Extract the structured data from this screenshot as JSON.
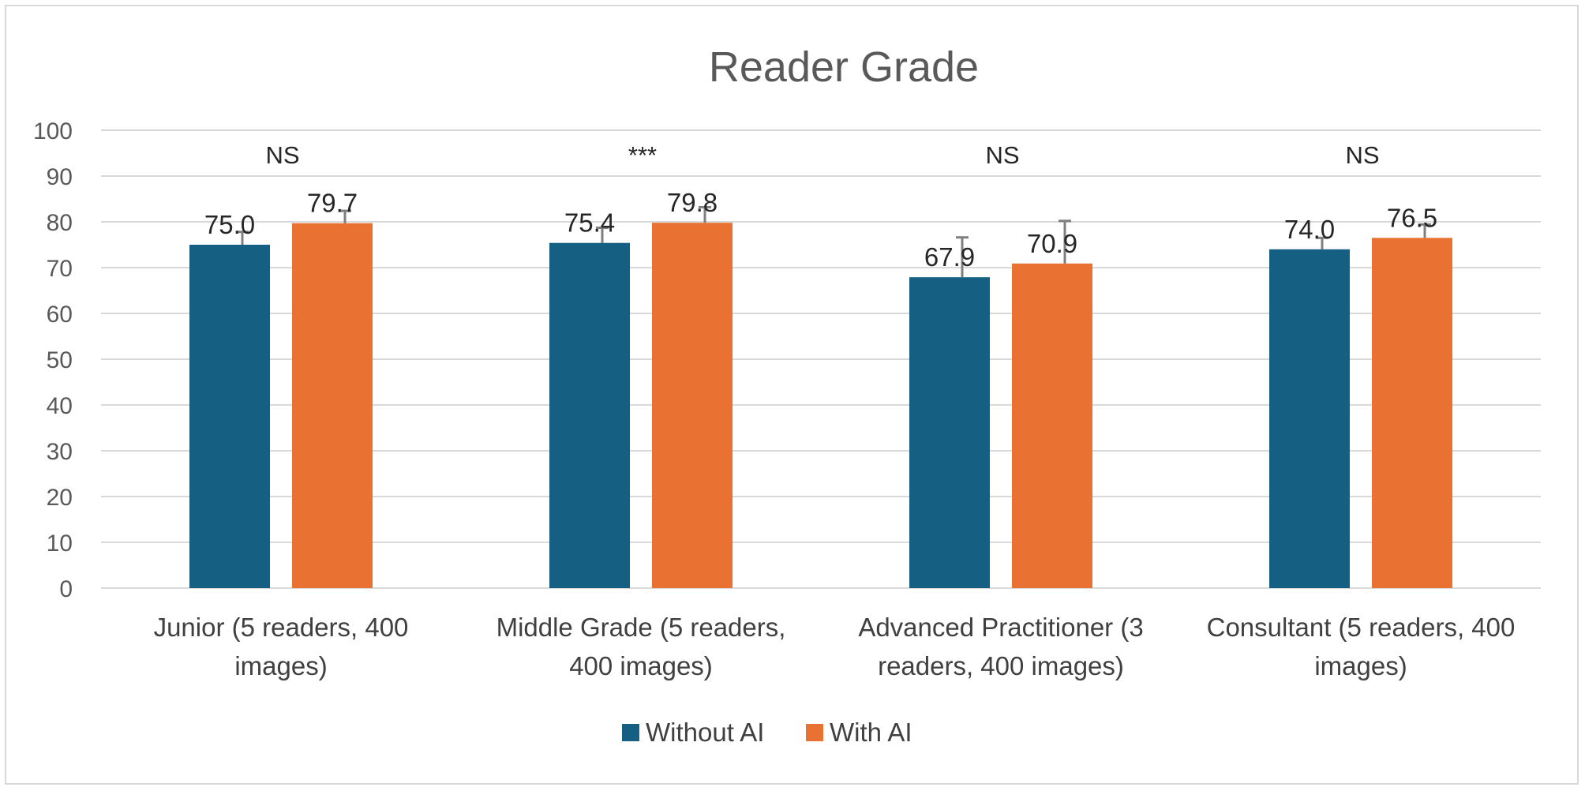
{
  "chart_data": {
    "type": "bar",
    "title": "Reader Grade",
    "categories": [
      [
        "Junior (5 readers, 400",
        "images)"
      ],
      [
        "Middle Grade (5 readers,",
        "400 images)"
      ],
      [
        "Advanced Practitioner (3",
        "readers, 400 images)"
      ],
      [
        "Consultant (5 readers, 400",
        "images)"
      ]
    ],
    "series": [
      {
        "name": "Without AI",
        "color": "#156082",
        "values": [
          75.0,
          75.4,
          67.9,
          74.0
        ],
        "labels": [
          "75.0",
          "75.4",
          "67.9",
          "74.0"
        ],
        "error": [
          2.8,
          3.3,
          8.7,
          2.5
        ]
      },
      {
        "name": "With AI",
        "color": "#E97132",
        "values": [
          79.7,
          79.8,
          70.9,
          76.5
        ],
        "labels": [
          "79.7",
          "79.8",
          "70.9",
          "76.5"
        ],
        "error": [
          2.7,
          3.4,
          9.3,
          2.9
        ]
      }
    ],
    "significance": [
      "NS",
      "***",
      "NS",
      "NS"
    ],
    "ylim": [
      0,
      100
    ],
    "yticks": [
      0,
      10,
      20,
      30,
      40,
      50,
      60,
      70,
      80,
      90,
      100
    ],
    "ytick_labels": [
      "0",
      "10",
      "20",
      "30",
      "40",
      "50",
      "60",
      "70",
      "80",
      "90",
      "100"
    ],
    "grid": true,
    "legend_position": "bottom",
    "error_bar_color": "#7f7f7f",
    "gridline_color": "#d9d9d9"
  }
}
